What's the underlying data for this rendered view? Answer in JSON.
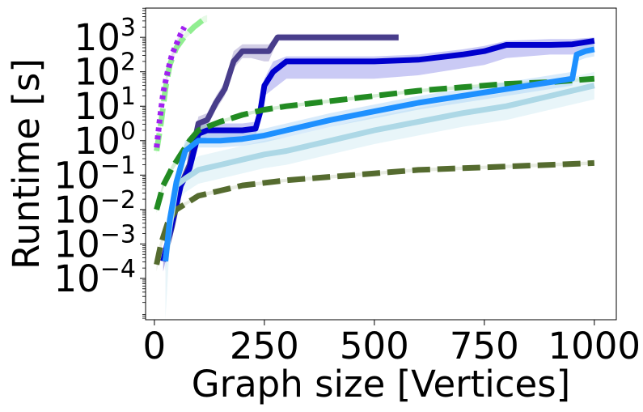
{
  "chart_data": {
    "type": "line",
    "xlabel": "Graph size [Vertices]",
    "ylabel": "Runtime [s]",
    "xlim": [
      -20,
      1050
    ],
    "ylim_log10": [
      -5.2,
      3.85
    ],
    "yscale": "log",
    "x_ticks": [
      0,
      250,
      500,
      750,
      1000
    ],
    "x_tick_labels": [
      "0",
      "250",
      "500",
      "750",
      "1000"
    ],
    "y_ticks": [
      {
        "exp": -4,
        "base": "10",
        "sup": "−4"
      },
      {
        "exp": -3,
        "base": "10",
        "sup": "−3"
      },
      {
        "exp": -2,
        "base": "10",
        "sup": "−2"
      },
      {
        "exp": -1,
        "base": "10",
        "sup": "−1"
      },
      {
        "exp": 0,
        "base": "10",
        "sup": "0"
      },
      {
        "exp": 1,
        "base": "10",
        "sup": "1"
      },
      {
        "exp": 2,
        "base": "10",
        "sup": "2"
      },
      {
        "exp": 3,
        "base": "10",
        "sup": "3"
      }
    ],
    "grid": false,
    "legend": "none",
    "series": [
      {
        "color": "#483D8B",
        "dash": "solid",
        "band": "#9b93c7",
        "x": [
          20,
          40,
          60,
          80,
          100,
          120,
          140,
          160,
          180,
          200,
          220,
          250,
          260,
          280,
          300,
          400,
          500,
          555
        ],
        "y_log10": [
          -3.5,
          -2.5,
          -1.3,
          -0.7,
          0.5,
          0.6,
          1.1,
          1.5,
          2.3,
          2.6,
          2.6,
          2.6,
          2.6,
          3.0,
          3.0,
          3.0,
          3.0,
          3.0
        ],
        "band_lo": [
          -3.8,
          -2.7,
          -1.5,
          -0.9,
          0.3,
          0.4,
          0.9,
          1.3,
          2.1,
          2.4,
          2.4,
          2.3,
          2.3,
          2.9,
          2.9,
          2.9,
          2.9,
          2.9
        ],
        "band_hi": [
          -3.2,
          -2.3,
          -1.1,
          -0.5,
          0.7,
          0.8,
          1.3,
          1.7,
          2.6,
          2.8,
          2.8,
          2.8,
          2.8,
          3.1,
          3.1,
          3.1,
          3.1,
          3.1
        ]
      },
      {
        "color": "#0000CD",
        "dash": "solid",
        "band": "#8a8ae8",
        "x": [
          20,
          40,
          60,
          80,
          100,
          120,
          140,
          160,
          180,
          200,
          230,
          240,
          250,
          270,
          300,
          320,
          400,
          500,
          600,
          700,
          750,
          800,
          900,
          950,
          1000
        ],
        "y_log10": [
          -3.5,
          -2.4,
          -1.3,
          -0.8,
          0.2,
          0.3,
          0.3,
          0.3,
          0.3,
          0.3,
          0.35,
          0.8,
          1.6,
          2.0,
          2.3,
          2.3,
          2.3,
          2.3,
          2.35,
          2.5,
          2.6,
          2.78,
          2.78,
          2.8,
          2.9
        ],
        "band_lo": [
          -3.8,
          -2.6,
          -1.5,
          -1.0,
          0.0,
          0.1,
          0.1,
          0.1,
          0.1,
          0.1,
          0.15,
          0.6,
          1.3,
          1.5,
          1.8,
          1.8,
          1.8,
          1.8,
          1.9,
          2.1,
          2.2,
          2.4,
          2.5,
          2.5,
          2.6
        ],
        "band_hi": [
          -3.2,
          -2.2,
          -1.1,
          -0.6,
          0.4,
          0.5,
          0.5,
          0.5,
          0.5,
          0.5,
          0.55,
          1.0,
          1.8,
          2.3,
          2.45,
          2.45,
          2.45,
          2.45,
          2.5,
          2.65,
          2.75,
          2.9,
          2.95,
          2.95,
          3.0
        ]
      },
      {
        "color": "#228B22",
        "dash": "dashed",
        "band": "#9fd89f",
        "x": [
          5,
          20,
          40,
          60,
          80,
          100,
          150,
          200,
          250,
          300,
          400,
          500,
          600,
          700,
          800,
          900,
          1000
        ],
        "y_log10": [
          -2.0,
          -1.3,
          -0.8,
          -0.4,
          0.0,
          0.3,
          0.55,
          0.75,
          0.9,
          1.0,
          1.15,
          1.3,
          1.45,
          1.55,
          1.65,
          1.7,
          1.8
        ],
        "band_lo": [
          -2.1,
          -1.4,
          -0.9,
          -0.5,
          -0.1,
          0.2,
          0.5,
          0.7,
          0.85,
          0.95,
          1.1,
          1.25,
          1.4,
          1.5,
          1.6,
          1.65,
          1.75
        ],
        "band_hi": [
          -1.9,
          -1.2,
          -0.7,
          -0.3,
          0.1,
          0.4,
          0.6,
          0.8,
          0.95,
          1.05,
          1.2,
          1.35,
          1.5,
          1.6,
          1.7,
          1.75,
          1.85
        ]
      },
      {
        "color": "#556B2F",
        "dash": "dashed",
        "band": "#c9d3bd",
        "x": [
          5,
          15,
          30,
          50,
          75,
          100,
          150,
          200,
          300,
          400,
          500,
          600,
          700,
          800,
          900,
          1000
        ],
        "y_log10": [
          -3.6,
          -3.0,
          -2.4,
          -2.0,
          -1.8,
          -1.6,
          -1.45,
          -1.3,
          -1.15,
          -1.05,
          -0.95,
          -0.85,
          -0.8,
          -0.75,
          -0.7,
          -0.65
        ],
        "band_lo": [
          -3.8,
          -3.15,
          -2.5,
          -2.1,
          -1.85,
          -1.65,
          -1.5,
          -1.35,
          -1.2,
          -1.1,
          -1.0,
          -0.9,
          -0.85,
          -0.8,
          -0.75,
          -0.7
        ],
        "band_hi": [
          -3.4,
          -2.85,
          -2.3,
          -1.9,
          -1.75,
          -1.55,
          -1.4,
          -1.25,
          -1.1,
          -1.0,
          -0.9,
          -0.8,
          -0.75,
          -0.7,
          -0.65,
          -0.6
        ]
      },
      {
        "color": "#ADD8E6",
        "dash": "solid",
        "band": "#cde9f2",
        "x": [
          25,
          35,
          50,
          70,
          100,
          150,
          200,
          250,
          300,
          400,
          500,
          600,
          700,
          800,
          900,
          1000
        ],
        "y_log10": [
          -3.5,
          -2.5,
          -1.3,
          -1.1,
          -0.85,
          -0.7,
          -0.55,
          -0.4,
          -0.3,
          0.0,
          0.3,
          0.55,
          0.8,
          1.0,
          1.3,
          1.6
        ],
        "band_lo": [
          -5.2,
          -3.0,
          -1.8,
          -1.5,
          -1.25,
          -1.1,
          -0.95,
          -0.8,
          -0.7,
          -0.4,
          -0.1,
          0.15,
          0.4,
          0.6,
          0.9,
          1.2
        ],
        "band_hi": [
          -3.0,
          -2.0,
          -0.9,
          -0.7,
          -0.45,
          -0.3,
          -0.15,
          0.0,
          0.1,
          0.4,
          0.7,
          0.95,
          1.2,
          1.4,
          1.7,
          2.0
        ]
      },
      {
        "color": "#1E90FF",
        "dash": "solid",
        "band": "#a8d3f7",
        "x": [
          25,
          35,
          50,
          70,
          100,
          150,
          200,
          250,
          300,
          400,
          500,
          600,
          700,
          800,
          900,
          950,
          960,
          980,
          1000
        ],
        "y_log10": [
          -3.5,
          -2.3,
          -1.2,
          -0.3,
          0.0,
          0.0,
          0.05,
          0.15,
          0.3,
          0.6,
          0.85,
          1.1,
          1.3,
          1.5,
          1.7,
          1.8,
          2.5,
          2.6,
          2.65
        ],
        "band_lo": [
          -3.8,
          -2.6,
          -1.5,
          -0.6,
          -0.2,
          -0.2,
          -0.15,
          -0.05,
          0.1,
          0.4,
          0.65,
          0.9,
          1.1,
          1.3,
          1.5,
          1.6,
          2.3,
          2.4,
          2.45
        ],
        "band_hi": [
          -3.2,
          -2.0,
          -0.9,
          0.0,
          0.2,
          0.2,
          0.25,
          0.35,
          0.5,
          0.8,
          1.05,
          1.3,
          1.5,
          1.7,
          1.9,
          2.0,
          2.7,
          2.8,
          2.85
        ]
      },
      {
        "color": "#90EE90",
        "dash": "dashed",
        "band": "#c8f5c8",
        "x": [
          5,
          15,
          25,
          35,
          50,
          70,
          90,
          110,
          120
        ],
        "y_log10": [
          -0.3,
          0.5,
          1.5,
          2.2,
          2.7,
          3.05,
          3.3,
          3.5,
          3.55
        ],
        "band_lo": [
          -0.4,
          0.4,
          1.4,
          2.1,
          2.6,
          2.95,
          3.2,
          3.4,
          3.45
        ],
        "band_hi": [
          -0.2,
          0.6,
          1.6,
          2.3,
          2.8,
          3.15,
          3.4,
          3.6,
          3.65
        ]
      },
      {
        "color": "#A020F0",
        "dash": "dotted",
        "band": "#d9a8f7",
        "x": [
          5,
          12,
          20,
          30,
          40,
          50,
          60,
          68
        ],
        "y_log10": [
          -0.2,
          0.6,
          1.4,
          2.0,
          2.5,
          2.8,
          3.1,
          3.3
        ],
        "band_lo": [
          -0.3,
          0.5,
          1.3,
          1.9,
          2.4,
          2.7,
          3.0,
          3.2
        ],
        "band_hi": [
          -0.1,
          0.7,
          1.5,
          2.1,
          2.6,
          2.9,
          3.2,
          3.4
        ]
      }
    ]
  }
}
